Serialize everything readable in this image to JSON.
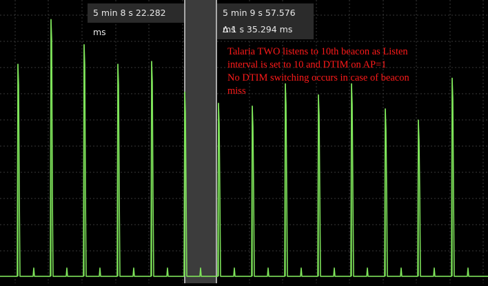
{
  "markers": {
    "a": {
      "time": "5 min 8 s 22.282 ms"
    },
    "b": {
      "time": "5 min 9 s 57.576 ms",
      "delta": "Δ 1 s 35.294 ms"
    }
  },
  "annotation": {
    "lines": [
      "Talaria TWO listens to 10th beacon as Listen",
      "interval is set to 10 and DTIM on AP=1",
      "No DTIM switching occurs in case of beacon",
      "miss"
    ]
  },
  "colors": {
    "background": "#000000",
    "trace": "#7ee35a",
    "grid": "#3a3a3a",
    "selection": "#3c3c3c",
    "annotation": "#ff1a1a"
  },
  "trace": {
    "baseline_level": 0.02,
    "spikes": [
      {
        "level": 0.77
      },
      {
        "level": 0.93
      },
      {
        "level": 0.84
      },
      {
        "level": 0.77
      },
      {
        "level": 0.78
      },
      {
        "level": 0.67
      },
      {
        "level": 0.63
      },
      {
        "level": 0.62
      },
      {
        "level": 0.7
      },
      {
        "level": 0.66
      },
      {
        "level": 0.7
      },
      {
        "level": 0.61
      },
      {
        "level": 0.57
      },
      {
        "level": 0.72
      }
    ]
  }
}
